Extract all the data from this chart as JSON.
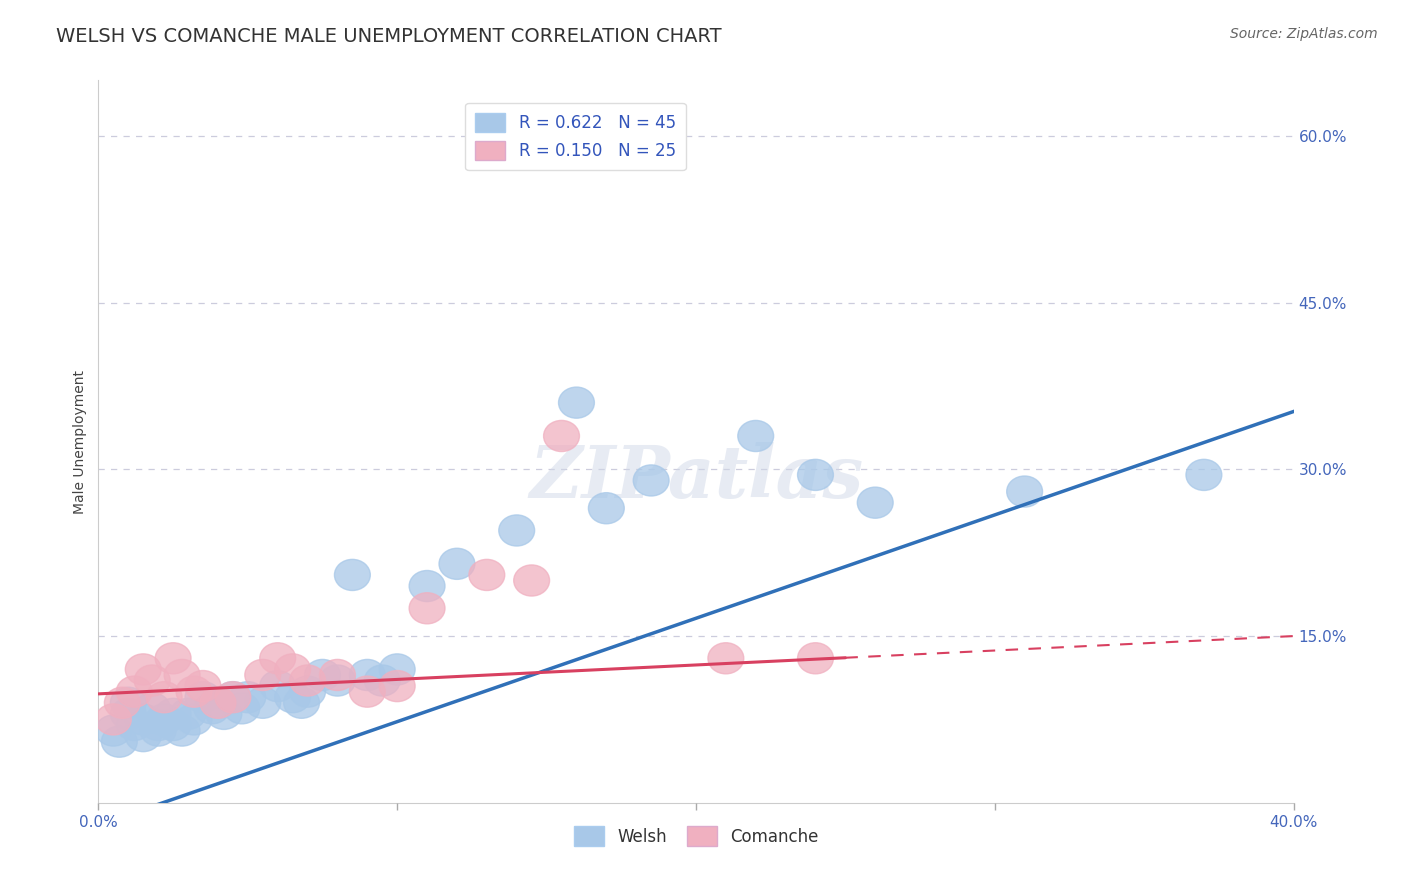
{
  "title": "WELSH VS COMANCHE MALE UNEMPLOYMENT CORRELATION CHART",
  "source": "Source: ZipAtlas.com",
  "ylabel": "Male Unemployment",
  "xlim": [
    0.0,
    0.4
  ],
  "ylim": [
    0.0,
    0.65
  ],
  "xticks": [
    0.0,
    0.1,
    0.2,
    0.3,
    0.4
  ],
  "xtick_labels_ends": [
    "0.0%",
    "40.0%"
  ],
  "yticks": [
    0.0,
    0.15,
    0.3,
    0.45,
    0.6
  ],
  "ytick_labels": [
    "",
    "15.0%",
    "30.0%",
    "45.0%",
    "60.0%"
  ],
  "welsh_color": "#a8c8e8",
  "comanche_color": "#f0b0c0",
  "welsh_line_color": "#3070b8",
  "comanche_line_color": "#d84060",
  "R_welsh": 0.622,
  "N_welsh": 45,
  "R_comanche": 0.15,
  "N_comanche": 25,
  "welsh_x": [
    0.005,
    0.007,
    0.01,
    0.01,
    0.012,
    0.015,
    0.015,
    0.018,
    0.02,
    0.02,
    0.022,
    0.025,
    0.025,
    0.028,
    0.03,
    0.032,
    0.035,
    0.038,
    0.04,
    0.042,
    0.045,
    0.048,
    0.05,
    0.055,
    0.06,
    0.065,
    0.068,
    0.07,
    0.075,
    0.08,
    0.085,
    0.09,
    0.095,
    0.1,
    0.11,
    0.12,
    0.14,
    0.16,
    0.17,
    0.185,
    0.22,
    0.24,
    0.26,
    0.31,
    0.37
  ],
  "welsh_y": [
    0.065,
    0.055,
    0.08,
    0.09,
    0.07,
    0.075,
    0.06,
    0.085,
    0.07,
    0.065,
    0.075,
    0.08,
    0.07,
    0.065,
    0.08,
    0.075,
    0.095,
    0.085,
    0.09,
    0.08,
    0.095,
    0.085,
    0.095,
    0.09,
    0.105,
    0.095,
    0.09,
    0.1,
    0.115,
    0.11,
    0.205,
    0.115,
    0.11,
    0.12,
    0.195,
    0.215,
    0.245,
    0.36,
    0.265,
    0.29,
    0.33,
    0.295,
    0.27,
    0.28,
    0.295
  ],
  "comanche_x": [
    0.005,
    0.008,
    0.012,
    0.015,
    0.018,
    0.022,
    0.025,
    0.028,
    0.032,
    0.035,
    0.04,
    0.045,
    0.055,
    0.06,
    0.065,
    0.07,
    0.08,
    0.09,
    0.1,
    0.11,
    0.13,
    0.145,
    0.155,
    0.21,
    0.24
  ],
  "comanche_y": [
    0.075,
    0.09,
    0.1,
    0.12,
    0.11,
    0.095,
    0.13,
    0.115,
    0.1,
    0.105,
    0.09,
    0.095,
    0.115,
    0.13,
    0.12,
    0.11,
    0.115,
    0.1,
    0.105,
    0.175,
    0.205,
    0.2,
    0.33,
    0.13,
    0.13
  ],
  "background_color": "#ffffff",
  "grid_color": "#ccccdd",
  "title_fontsize": 14,
  "axis_label_fontsize": 10,
  "tick_fontsize": 11,
  "legend_fontsize": 12,
  "source_fontsize": 10,
  "welsh_line_intercept": -0.02,
  "welsh_line_slope": 0.93,
  "comanche_line_intercept": 0.098,
  "comanche_line_slope": 0.13
}
